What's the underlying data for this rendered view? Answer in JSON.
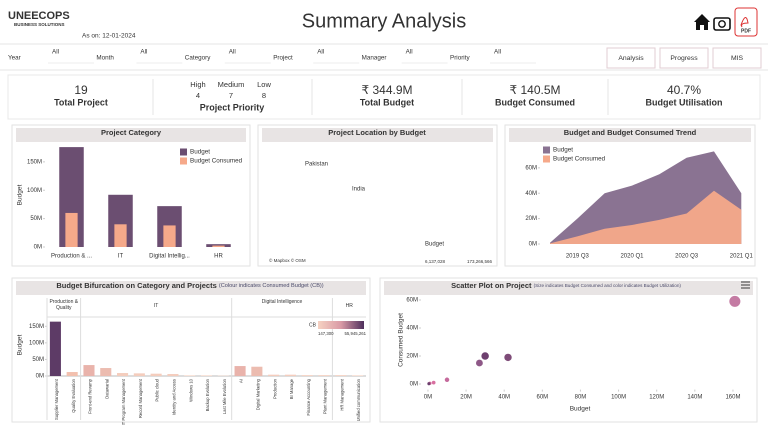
{
  "header": {
    "logo": "UNEECOPS",
    "logo_tagline": "BUSINESS SOLUTIONS",
    "as_on": "As on: 12-01-2024",
    "title": "Summary Analysis",
    "pdf_label": "PDF"
  },
  "filters": [
    {
      "label": "Year",
      "value": "All"
    },
    {
      "label": "Month",
      "value": "All"
    },
    {
      "label": "Category",
      "value": "All"
    },
    {
      "label": "Project",
      "value": "All"
    },
    {
      "label": "Manager",
      "value": "All"
    },
    {
      "label": "Priority",
      "value": "All"
    }
  ],
  "buttons": [
    "Analysis",
    "Progress",
    "MIS"
  ],
  "kpis": {
    "total_project": {
      "value": 19,
      "label": "Total Project"
    },
    "priority": {
      "levels": [
        {
          "name": "High",
          "value": 4
        },
        {
          "name": "Medium",
          "value": 7
        },
        {
          "name": "Low",
          "value": 8
        }
      ],
      "label": "Project Priority"
    },
    "total_budget": {
      "value": "₹ 344.9M",
      "label": "Total Budget"
    },
    "budget_consumed": {
      "value": "₹ 140.5M",
      "label": "Budget Consumed"
    },
    "budget_utilisation": {
      "value": "40.7%",
      "label": "Budget Utilisation"
    }
  },
  "map": {
    "title": "Project Location by Budget",
    "country_labels": [
      "Pakistan",
      "India"
    ],
    "legend_title": "Budget",
    "legend_min": "6,137,028",
    "legend_max": "173,266,566",
    "attribution": "© Mapbox © OSM"
  },
  "chart_data": [
    {
      "type": "bar",
      "title": "Project Category",
      "y_label": "Budget",
      "categories": [
        "Production & ...",
        "IT",
        "Digital Intellig...",
        "HR"
      ],
      "series": [
        {
          "name": "Budget",
          "color": "#6b4e71",
          "values": [
            176,
            92,
            72,
            5
          ]
        },
        {
          "name": "Budget Consumed",
          "color": "#f6a98a",
          "values": [
            60,
            40,
            38,
            2.5
          ]
        }
      ],
      "ylim": [
        0,
        185
      ],
      "yticks": [
        {
          "value": 0,
          "label": "0M"
        },
        {
          "value": 50,
          "label": "50M"
        },
        {
          "value": 100,
          "label": "100M"
        },
        {
          "value": 150,
          "label": "150M"
        }
      ],
      "legend": "upper right"
    },
    {
      "type": "area",
      "title": "Budget and Budget Consumed Trend",
      "categories": [
        null,
        "2019 Q3",
        null,
        "2020 Q1",
        null,
        "2020 Q3",
        null,
        "2021 Q1"
      ],
      "series": [
        {
          "name": "Budget",
          "color": "#8a7392",
          "values": [
            1,
            20,
            40,
            46,
            55,
            68,
            73,
            40
          ]
        },
        {
          "name": "Budget Consumed",
          "color": "#f6a98a",
          "values": [
            0.5,
            6,
            12,
            15,
            19,
            24,
            42,
            27
          ]
        }
      ],
      "ylim": [
        0,
        78
      ],
      "yticks": [
        {
          "value": 0,
          "label": "0M"
        },
        {
          "value": 20,
          "label": "20M"
        },
        {
          "value": 40,
          "label": "40M"
        },
        {
          "value": 60,
          "label": "60M"
        }
      ],
      "legend": "upper left"
    },
    {
      "type": "bar",
      "title": "Budget Bifurcation on Category and Projects",
      "subtitle": "(Colour indicates Consumed Budget (CB))",
      "y_label": "Budget",
      "groups": [
        {
          "name": "Production & Quality",
          "categories": [
            "Supplier Management",
            "Quality Evaluation"
          ],
          "values": [
            164,
            12
          ],
          "colors": [
            "#5d3b66",
            "#f2c0ae"
          ]
        },
        {
          "name": "IT",
          "categories": [
            "Front-end Revamp",
            "Datawarial",
            "IT Program Management",
            "Record Management",
            "Public cloud",
            "Identity and Access",
            "Windows 10",
            "Backup Evolution",
            "Last Mile Evolution"
          ],
          "values": [
            33,
            24,
            9,
            8,
            7,
            6,
            2,
            2,
            1
          ],
          "colors": [
            "#e9b3ab",
            "#ecbcb0",
            "#f4cdbd",
            "#f4cdbd",
            "#f4cdbd",
            "#f4cdbd",
            "#f6d6c8",
            "#f6d6c8",
            "#f6d6c8"
          ]
        },
        {
          "name": "Digital Intelligence",
          "categories": [
            "AI",
            "Digital Marketing",
            "Production",
            "BI Manage",
            "Finance Accounting",
            "Plant Management"
          ],
          "values": [
            30,
            28,
            4,
            4,
            3,
            3
          ],
          "colors": [
            "#e9b3ab",
            "#ecbcb0",
            "#f4cdbd",
            "#f4cdbd",
            "#f6d6c8",
            "#f6d6c8"
          ]
        },
        {
          "name": "HR",
          "categories": [
            "HR Management",
            "Unified communication"
          ],
          "values": [
            3,
            2
          ],
          "colors": [
            "#f6d6c8",
            "#f6d6c8"
          ]
        }
      ],
      "color_legend": {
        "title": "CB",
        "min_label": "147,300",
        "max_label": "55,945,261"
      },
      "ylim": [
        0,
        175
      ],
      "yticks": [
        {
          "value": 0,
          "label": "0M"
        },
        {
          "value": 50,
          "label": "50M"
        },
        {
          "value": 100,
          "label": "100M"
        },
        {
          "value": 150,
          "label": "150M"
        }
      ]
    },
    {
      "type": "scatter",
      "title": "Scatter Plot on Project",
      "subtitle": "(Size indicates Budget Consumed and color indicates Budget Utilization)",
      "x_label": "Budget",
      "y_label": "Consumed Budget",
      "x": [
        161,
        42,
        30,
        27,
        10,
        3,
        1,
        0.5
      ],
      "y": [
        59,
        19,
        20,
        15,
        3,
        1,
        0.5,
        0.2
      ],
      "colors": [
        "#c47ba3",
        "#7e4b78",
        "#6d3f6e",
        "#8e5887",
        "#c56a9c",
        "#d86fa0",
        "#d86fa0",
        "#6d3f6e"
      ],
      "xlim": [
        -8,
        168
      ],
      "xticks": [
        {
          "value": 0,
          "label": "0M"
        },
        {
          "value": 20,
          "label": "20M"
        },
        {
          "value": 40,
          "label": "40M"
        },
        {
          "value": 60,
          "label": "60M"
        },
        {
          "value": 80,
          "label": "80M"
        },
        {
          "value": 100,
          "label": "100M"
        },
        {
          "value": 120,
          "label": "120M"
        },
        {
          "value": 140,
          "label": "140M"
        },
        {
          "value": 160,
          "label": "160M"
        }
      ],
      "ylim": [
        -4,
        64
      ],
      "yticks": [
        {
          "value": 0,
          "label": "0M"
        },
        {
          "value": 20,
          "label": "20M"
        },
        {
          "value": 40,
          "label": "40M"
        },
        {
          "value": 60,
          "label": "60M"
        }
      ]
    }
  ]
}
